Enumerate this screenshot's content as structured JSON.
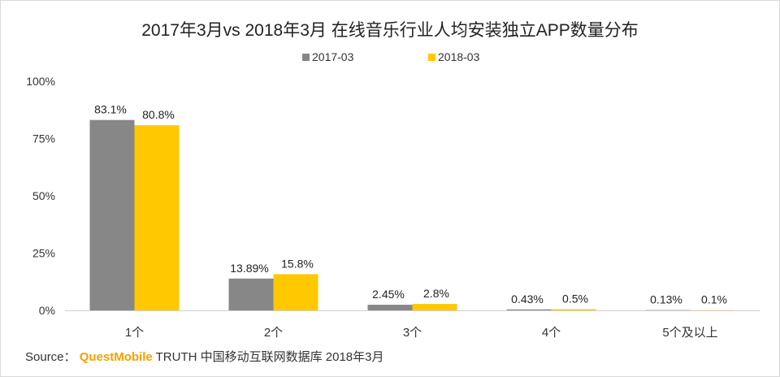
{
  "chart_data": {
    "type": "bar",
    "title": "2017年3月vs 2018年3月 在线音乐行业人均安装独立APP数量分布",
    "categories": [
      "1个",
      "2个",
      "3个",
      "4个",
      "5个及以上"
    ],
    "series": [
      {
        "name": "2017-03",
        "color": "#878787",
        "values": [
          83.1,
          13.89,
          2.45,
          0.43,
          0.13
        ],
        "labels": [
          "83.1%",
          "13.89%",
          "2.45%",
          "0.43%",
          "0.13%"
        ]
      },
      {
        "name": "2018-03",
        "color": "#ffc800",
        "values": [
          80.8,
          15.8,
          2.8,
          0.5,
          0.1
        ],
        "labels": [
          "80.8%",
          "15.8%",
          "2.8%",
          "0.5%",
          "0.1%"
        ]
      }
    ],
    "ylim": [
      0,
      100
    ],
    "yticks": [
      "0%",
      "25%",
      "50%",
      "75%",
      "100%"
    ],
    "ytick_values": [
      0,
      25,
      50,
      75,
      100
    ],
    "legend_position": "top-center",
    "grid": false
  },
  "source": {
    "prefix": "Source：",
    "brand": "QuestMobile",
    "text": "TRUTH 中国移动互联网数据库 2018年3月"
  }
}
